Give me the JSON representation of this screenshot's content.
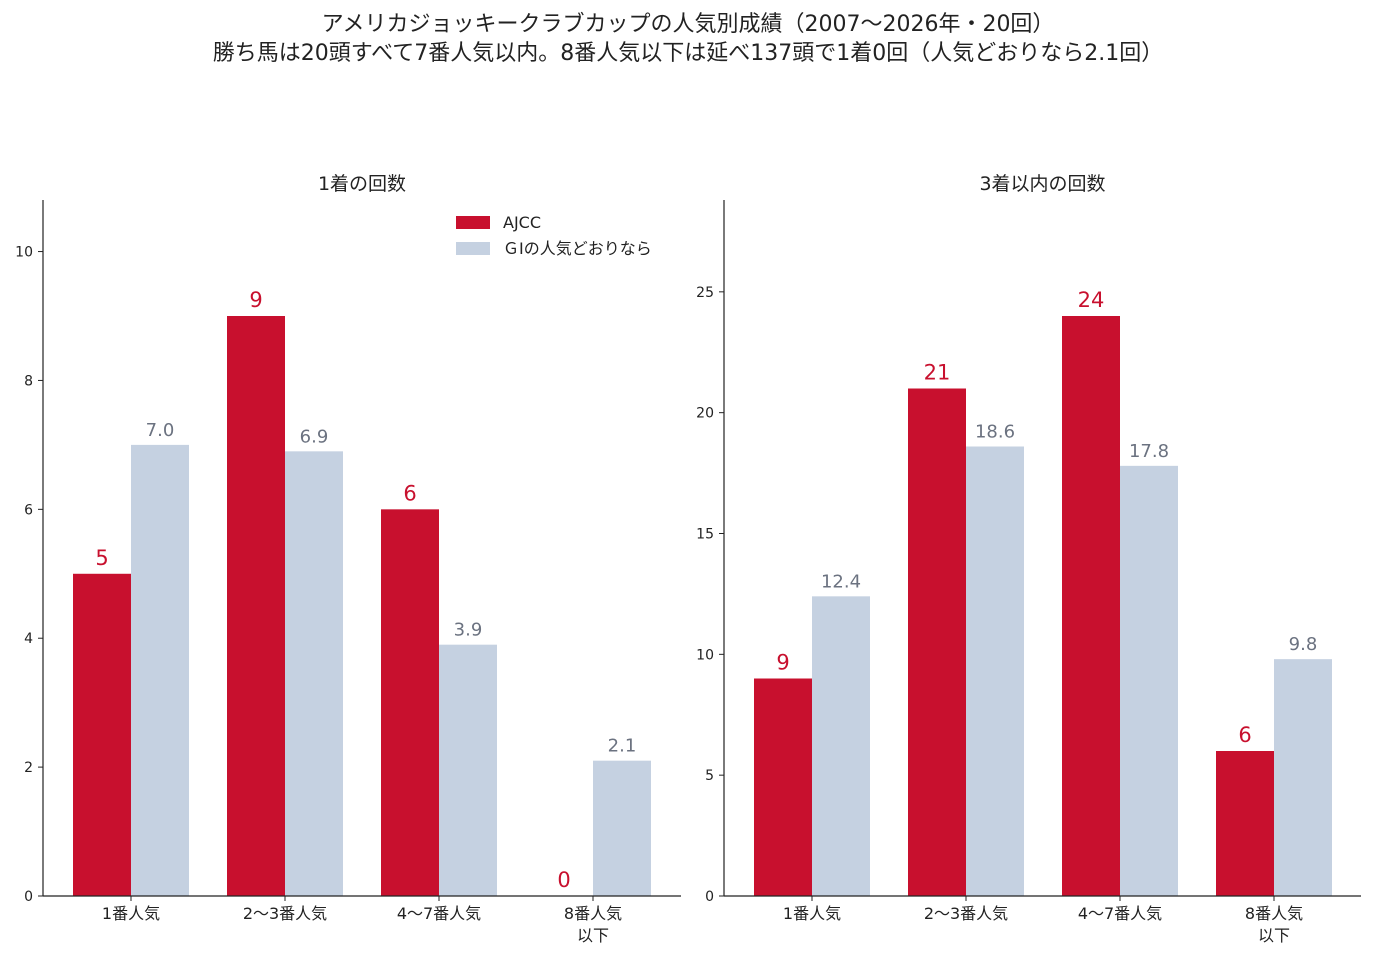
{
  "title_line1": "アメリカジョッキークラブカップの人気別成績（2007〜2026年・20回）",
  "title_line2": "勝ち馬は20頭すべて7番人気以内。8番人気以下は延べ137頭で1着0回（人気どおりなら2.1回）",
  "colors": {
    "ajcc": "#c8102e",
    "expected": "#c5d1e1",
    "expected_label": "#6b7280"
  },
  "chart_data": [
    {
      "type": "bar",
      "title": "1着の回数",
      "categories": [
        [
          "1番人気"
        ],
        [
          "2〜3番人気"
        ],
        [
          "4〜7番人気"
        ],
        [
          "8番人気",
          "以下"
        ]
      ],
      "series": [
        {
          "name": "AJCC",
          "values": [
            5,
            9,
            6,
            0
          ],
          "labels": [
            "5",
            "9",
            "6",
            "0"
          ]
        },
        {
          "name": "ＧⅠの人気どおりなら",
          "values": [
            7.0,
            6.9,
            3.9,
            2.1
          ],
          "labels": [
            "7.0",
            "6.9",
            "3.9",
            "2.1"
          ]
        }
      ],
      "ylim": [
        0,
        10.8
      ],
      "yticks": [
        0,
        2,
        4,
        6,
        8,
        10
      ],
      "legend": "top-right"
    },
    {
      "type": "bar",
      "title": "3着以内の回数",
      "categories": [
        [
          "1番人気"
        ],
        [
          "2〜3番人気"
        ],
        [
          "4〜7番人気"
        ],
        [
          "8番人気",
          "以下"
        ]
      ],
      "series": [
        {
          "name": "AJCC",
          "values": [
            9,
            21,
            24,
            6
          ],
          "labels": [
            "9",
            "21",
            "24",
            "6"
          ]
        },
        {
          "name": "ＧⅠの人気どおりなら",
          "values": [
            12.4,
            18.6,
            17.8,
            9.8
          ],
          "labels": [
            "12.4",
            "18.6",
            "17.8",
            "9.8"
          ]
        }
      ],
      "ylim": [
        0,
        28.8
      ],
      "yticks": [
        0,
        5,
        10,
        15,
        20,
        25
      ]
    }
  ]
}
